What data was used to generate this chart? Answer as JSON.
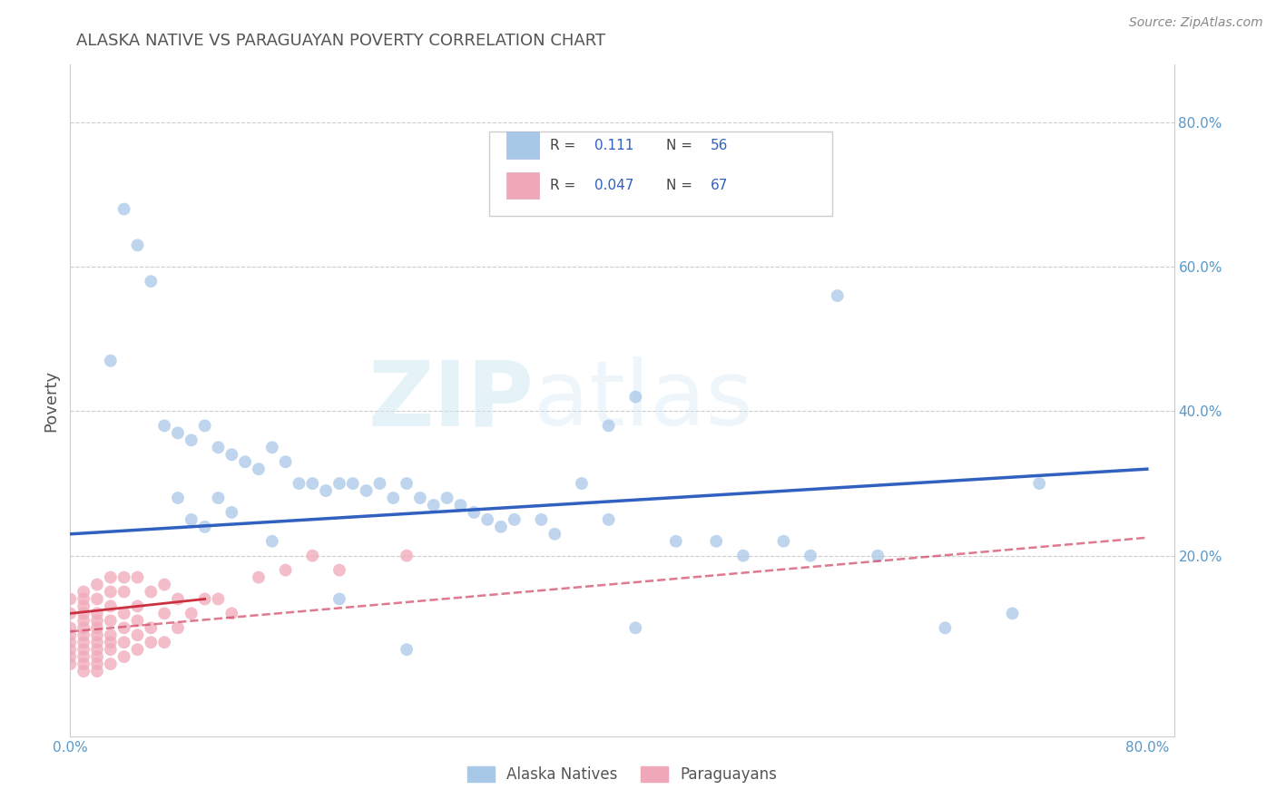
{
  "title": "ALASKA NATIVE VS PARAGUAYAN POVERTY CORRELATION CHART",
  "source_text": "Source: ZipAtlas.com",
  "ylabel": "Poverty",
  "xlim": [
    0.0,
    0.82
  ],
  "ylim": [
    -0.05,
    0.88
  ],
  "x_ticks": [
    0.0,
    0.2,
    0.4,
    0.6,
    0.8
  ],
  "y_ticks": [
    0.0,
    0.2,
    0.4,
    0.6,
    0.8
  ],
  "x_tick_labels": [
    "0.0%",
    "",
    "",
    "",
    "80.0%"
  ],
  "y_tick_labels_right": [
    "20.0%",
    "40.0%",
    "60.0%",
    "80.0%"
  ],
  "alaska_color": "#a8c8e8",
  "paraguayan_color": "#f0a8b8",
  "alaska_line_color": "#3060c0",
  "paraguayan_line_color": "#d04060",
  "watermark_zip": "ZIP",
  "watermark_atlas": "atlas",
  "alaska_x": [
    0.04,
    0.05,
    0.07,
    0.08,
    0.09,
    0.1,
    0.11,
    0.12,
    0.13,
    0.14,
    0.15,
    0.16,
    0.17,
    0.18,
    0.19,
    0.2,
    0.21,
    0.22,
    0.23,
    0.24,
    0.25,
    0.26,
    0.27,
    0.28,
    0.29,
    0.3,
    0.31,
    0.32,
    0.33,
    0.35,
    0.36,
    0.38,
    0.4,
    0.42,
    0.45,
    0.48,
    0.5,
    0.53,
    0.55,
    0.57,
    0.6,
    0.65,
    0.7,
    0.03,
    0.06,
    0.08,
    0.09,
    0.1,
    0.11,
    0.12,
    0.15,
    0.2,
    0.25,
    0.4,
    0.42,
    0.72
  ],
  "alaska_y": [
    0.68,
    0.63,
    0.38,
    0.37,
    0.36,
    0.38,
    0.35,
    0.34,
    0.33,
    0.32,
    0.35,
    0.33,
    0.3,
    0.3,
    0.29,
    0.3,
    0.3,
    0.29,
    0.3,
    0.28,
    0.3,
    0.28,
    0.27,
    0.28,
    0.27,
    0.26,
    0.25,
    0.24,
    0.25,
    0.25,
    0.23,
    0.3,
    0.25,
    0.42,
    0.22,
    0.22,
    0.2,
    0.22,
    0.2,
    0.56,
    0.2,
    0.1,
    0.12,
    0.47,
    0.58,
    0.28,
    0.25,
    0.24,
    0.28,
    0.26,
    0.22,
    0.14,
    0.07,
    0.38,
    0.1,
    0.3
  ],
  "paraguayan_x": [
    0.0,
    0.0,
    0.0,
    0.0,
    0.0,
    0.0,
    0.0,
    0.0,
    0.01,
    0.01,
    0.01,
    0.01,
    0.01,
    0.01,
    0.01,
    0.01,
    0.01,
    0.01,
    0.01,
    0.01,
    0.02,
    0.02,
    0.02,
    0.02,
    0.02,
    0.02,
    0.02,
    0.02,
    0.02,
    0.02,
    0.02,
    0.03,
    0.03,
    0.03,
    0.03,
    0.03,
    0.03,
    0.03,
    0.03,
    0.04,
    0.04,
    0.04,
    0.04,
    0.04,
    0.04,
    0.05,
    0.05,
    0.05,
    0.05,
    0.05,
    0.06,
    0.06,
    0.06,
    0.07,
    0.07,
    0.07,
    0.08,
    0.08,
    0.09,
    0.1,
    0.11,
    0.12,
    0.14,
    0.16,
    0.18,
    0.2,
    0.25
  ],
  "paraguayan_y": [
    0.06,
    0.08,
    0.1,
    0.12,
    0.14,
    0.05,
    0.07,
    0.09,
    0.04,
    0.06,
    0.08,
    0.1,
    0.12,
    0.14,
    0.05,
    0.07,
    0.09,
    0.11,
    0.13,
    0.15,
    0.04,
    0.06,
    0.08,
    0.1,
    0.12,
    0.14,
    0.16,
    0.05,
    0.07,
    0.09,
    0.11,
    0.05,
    0.07,
    0.09,
    0.11,
    0.13,
    0.15,
    0.17,
    0.08,
    0.06,
    0.08,
    0.1,
    0.12,
    0.15,
    0.17,
    0.07,
    0.09,
    0.11,
    0.13,
    0.17,
    0.08,
    0.1,
    0.15,
    0.08,
    0.12,
    0.16,
    0.1,
    0.14,
    0.12,
    0.14,
    0.14,
    0.12,
    0.17,
    0.18,
    0.2,
    0.18,
    0.2
  ],
  "background_color": "#ffffff",
  "grid_color": "#cccccc",
  "title_color": "#555555",
  "axis_label_color": "#5599cc"
}
